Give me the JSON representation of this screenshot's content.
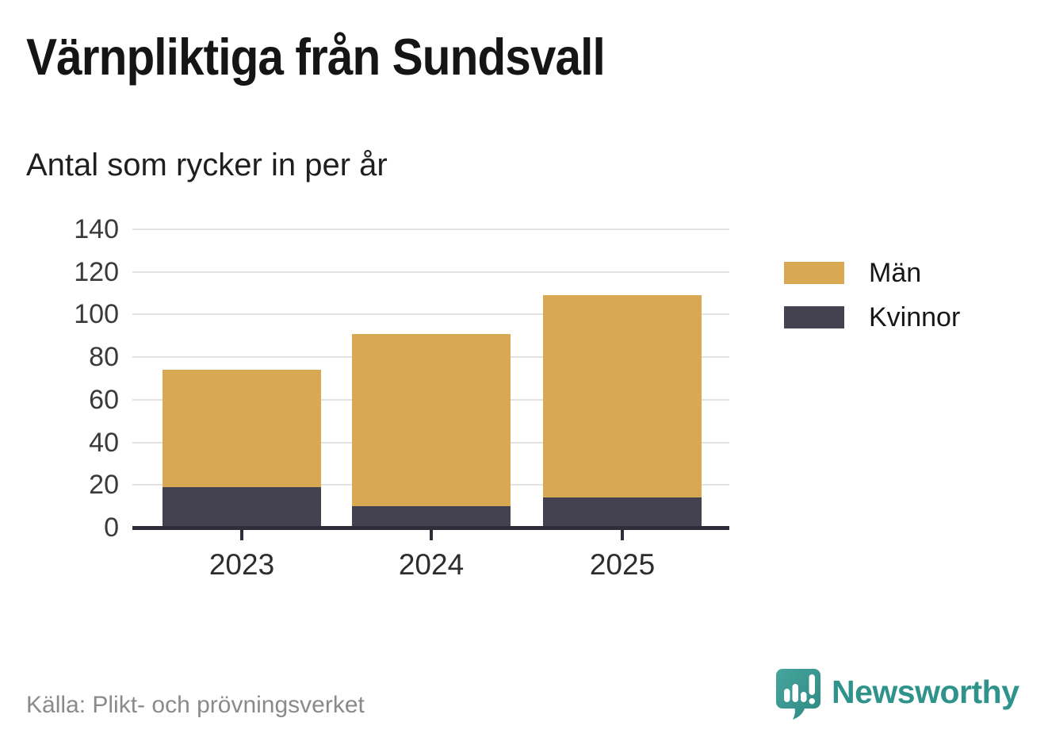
{
  "header": {
    "title": "Värnpliktiga från Sundsvall",
    "subtitle": "Antal som rycker in per år"
  },
  "chart_data": {
    "type": "bar",
    "stacked": true,
    "title": "Värnpliktiga från Sundsvall",
    "subtitle": "Antal som rycker in per år",
    "categories": [
      "2023",
      "2024",
      "2025"
    ],
    "series": [
      {
        "name": "Män",
        "color": "#d8a952",
        "values": [
          55,
          81,
          95
        ]
      },
      {
        "name": "Kvinnor",
        "color": "#444150",
        "values": [
          19,
          10,
          14
        ]
      }
    ],
    "stacked_totals": [
      74,
      91,
      109
    ],
    "xlabel": "",
    "ylabel": "",
    "ylim": [
      0,
      140
    ],
    "yticks": [
      0,
      20,
      40,
      60,
      80,
      100,
      120,
      140
    ],
    "grid": true,
    "legend_position": "right",
    "legend_order": [
      "Män",
      "Kvinnor"
    ]
  },
  "footer": {
    "source": "Källa: Plikt- och prövningsverket",
    "brand": "Newsworthy"
  },
  "colors": {
    "men": "#d8a952",
    "women": "#444150",
    "axis": "#2f2d3a",
    "gridline": "#e3e3e3",
    "brand_teal": "#2f938c"
  }
}
